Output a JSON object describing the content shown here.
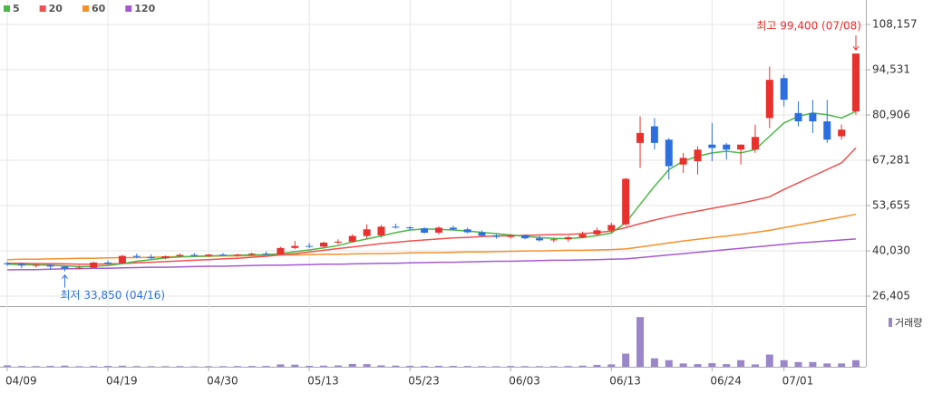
{
  "chart_data": {
    "type": "candlestick",
    "categories": [
      "04/09",
      null,
      null,
      null,
      null,
      null,
      null,
      "04/19",
      null,
      null,
      null,
      null,
      null,
      null,
      "04/30",
      null,
      null,
      null,
      null,
      null,
      null,
      "05/13",
      null,
      null,
      null,
      null,
      null,
      null,
      "05/23",
      null,
      null,
      null,
      null,
      null,
      null,
      "06/03",
      null,
      null,
      null,
      null,
      null,
      null,
      "06/13",
      null,
      null,
      null,
      null,
      null,
      null,
      "06/24",
      null,
      null,
      null,
      null,
      "07/01",
      null,
      null,
      null,
      null,
      null
    ],
    "open": [
      36300,
      36000,
      35600,
      35800,
      35300,
      34700,
      35000,
      36500,
      36300,
      38500,
      38200,
      37800,
      38400,
      38800,
      38500,
      38900,
      38700,
      38900,
      39200,
      39000,
      40900,
      41500,
      41300,
      42500,
      42800,
      44500,
      44700,
      47300,
      47100,
      46800,
      45500,
      47000,
      46500,
      45600,
      44600,
      44200,
      44700,
      43800,
      43200,
      43500,
      44100,
      45000,
      46200,
      48000,
      72500,
      77500,
      73500,
      66000,
      67000,
      72000,
      72000,
      70500,
      70500,
      80000,
      92000,
      81500,
      81500,
      79000,
      74500,
      82000
    ],
    "high": [
      36800,
      36500,
      36200,
      36000,
      35500,
      35600,
      36800,
      37200,
      38800,
      39200,
      39000,
      38600,
      39200,
      39400,
      39100,
      39400,
      39200,
      39500,
      39800,
      41200,
      43000,
      42400,
      42800,
      43500,
      45000,
      48000,
      47800,
      48200,
      47500,
      47200,
      47400,
      47600,
      47000,
      46200,
      45100,
      45000,
      45000,
      44500,
      44000,
      44500,
      45800,
      47000,
      48500,
      62000,
      80500,
      80000,
      74000,
      69500,
      71500,
      78500,
      72500,
      72000,
      78000,
      95500,
      93000,
      85000,
      85500,
      85500,
      78000,
      99400
    ],
    "low": [
      35500,
      34800,
      35000,
      34300,
      33850,
      34500,
      34900,
      35800,
      36200,
      37800,
      37600,
      37500,
      38100,
      38300,
      38200,
      38500,
      38300,
      38600,
      38800,
      38900,
      40500,
      40800,
      41000,
      42000,
      42500,
      43800,
      44000,
      46700,
      46200,
      45200,
      45000,
      46200,
      45300,
      44300,
      43700,
      43700,
      43500,
      42800,
      42600,
      42800,
      43800,
      44700,
      45500,
      47500,
      65000,
      70500,
      61500,
      63500,
      63000,
      67000,
      67500,
      66000,
      69500,
      77000,
      83500,
      77500,
      75500,
      72500,
      73500,
      81000
    ],
    "close": [
      36000,
      35600,
      35800,
      35300,
      34700,
      35000,
      36500,
      36300,
      38500,
      38200,
      37800,
      38400,
      38800,
      38500,
      38900,
      38700,
      38900,
      39200,
      39000,
      40900,
      41500,
      41300,
      42500,
      42800,
      44500,
      46500,
      47300,
      47100,
      46800,
      45500,
      47000,
      46500,
      45600,
      44600,
      44200,
      44700,
      43800,
      43200,
      43500,
      44100,
      45000,
      46200,
      47800,
      61700,
      75500,
      72500,
      65500,
      68000,
      70500,
      71000,
      70500,
      72000,
      74300,
      91500,
      85500,
      79000,
      79000,
      73500,
      76500,
      99400
    ],
    "up_color": "#e8302c",
    "down_color": "#2c70e0",
    "series": [
      {
        "name": "5",
        "color": "#4cb848",
        "values": [
          36000,
          35900,
          35800,
          35700,
          35500,
          35300,
          35400,
          35600,
          36200,
          36900,
          37400,
          37900,
          38200,
          38400,
          38500,
          38600,
          38700,
          38800,
          38900,
          39200,
          39800,
          40300,
          40900,
          41600,
          42700,
          43600,
          44500,
          45500,
          46300,
          46600,
          46500,
          46300,
          46000,
          45600,
          45200,
          44800,
          44400,
          44000,
          43800,
          43700,
          44000,
          44600,
          45400,
          48500,
          54000,
          59500,
          64500,
          67000,
          68500,
          69500,
          70000,
          69500,
          70500,
          74500,
          78500,
          80500,
          81500,
          81000,
          80000,
          82000
        ]
      },
      {
        "name": "20",
        "color": "#f05050",
        "values": [
          36300,
          36300,
          36200,
          36200,
          36100,
          36000,
          36000,
          36100,
          36200,
          36400,
          36600,
          36800,
          37000,
          37200,
          37400,
          37600,
          37800,
          38100,
          38400,
          38800,
          39200,
          39700,
          40200,
          40700,
          41200,
          41700,
          42200,
          42600,
          43000,
          43300,
          43600,
          43900,
          44100,
          44300,
          44500,
          44600,
          44700,
          44800,
          44900,
          45000,
          45200,
          45500,
          46000,
          47000,
          48200,
          49300,
          50300,
          51200,
          52000,
          52800,
          53600,
          54400,
          55300,
          56300,
          58500,
          60500,
          62500,
          64500,
          66500,
          71000
        ]
      },
      {
        "name": "60",
        "color": "#f5912c",
        "values": [
          37400,
          37500,
          37500,
          37600,
          37700,
          37800,
          37800,
          37900,
          38000,
          38000,
          38100,
          38200,
          38300,
          38300,
          38400,
          38500,
          38500,
          38600,
          38700,
          38800,
          38800,
          38900,
          39000,
          39000,
          39100,
          39200,
          39200,
          39300,
          39400,
          39500,
          39500,
          39600,
          39700,
          39700,
          39800,
          39900,
          40000,
          40000,
          40100,
          40200,
          40200,
          40300,
          40400,
          40600,
          41200,
          41800,
          42400,
          43000,
          43500,
          44000,
          44500,
          45000,
          45600,
          46200,
          47000,
          47800,
          48600,
          49400,
          50200,
          51000
        ]
      },
      {
        "name": "120",
        "color": "#a55ad2",
        "values": [
          34300,
          34400,
          34400,
          34500,
          34600,
          34700,
          34800,
          34800,
          34900,
          35000,
          35100,
          35100,
          35200,
          35300,
          35400,
          35400,
          35500,
          35600,
          35700,
          35700,
          35800,
          35900,
          36000,
          36000,
          36100,
          36200,
          36300,
          36300,
          36400,
          36500,
          36600,
          36600,
          36700,
          36800,
          36900,
          36900,
          37000,
          37100,
          37200,
          37200,
          37300,
          37400,
          37500,
          37600,
          38000,
          38400,
          38800,
          39200,
          39600,
          40000,
          40400,
          40800,
          41200,
          41600,
          42000,
          42400,
          42700,
          43000,
          43300,
          43600
        ]
      }
    ],
    "volume": {
      "name": "거래량",
      "color": "#9b86c9",
      "ylim": [
        0,
        5800000
      ],
      "values": [
        150000,
        80000,
        70000,
        90000,
        120000,
        60000,
        80000,
        90000,
        110000,
        70000,
        60000,
        60000,
        70000,
        50000,
        60000,
        60000,
        70000,
        80000,
        90000,
        250000,
        220000,
        100000,
        120000,
        140000,
        300000,
        280000,
        150000,
        120000,
        100000,
        90000,
        100000,
        90000,
        80000,
        70000,
        60000,
        80000,
        70000,
        60000,
        70000,
        80000,
        120000,
        200000,
        250000,
        1400000,
        5300000,
        900000,
        700000,
        350000,
        280000,
        380000,
        280000,
        700000,
        250000,
        1300000,
        700000,
        500000,
        500000,
        350000,
        350000,
        700000
      ]
    },
    "ylim": [
      23409,
      115515
    ],
    "yticks": [
      {
        "value": 26405,
        "label": "26,405"
      },
      {
        "value": 40030,
        "label": "40,030"
      },
      {
        "value": 53655,
        "label": "53,655"
      },
      {
        "value": 67281,
        "label": "67,281"
      },
      {
        "value": 80906,
        "label": "80,906"
      },
      {
        "value": 94531,
        "label": "94,531"
      },
      {
        "value": 108157,
        "label": "108,157"
      }
    ],
    "grid": true,
    "annotations": {
      "high": "최고 99,400 (07/08)",
      "low": "최저 33,850 (04/16)",
      "high_color": "#e8302c",
      "low_color": "#2c70e0"
    }
  }
}
